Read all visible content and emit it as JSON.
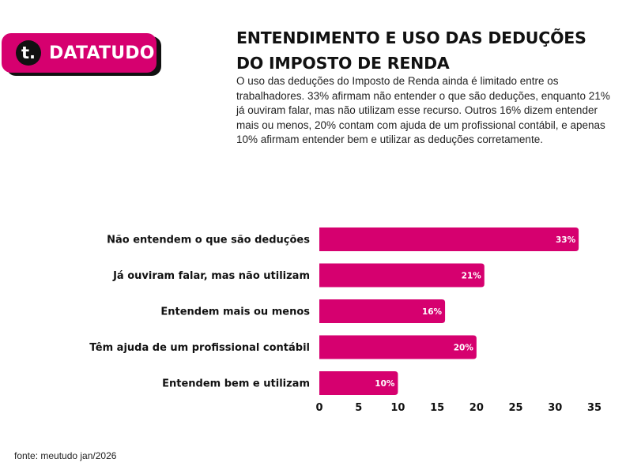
{
  "brand": {
    "logo_letter": "t.",
    "name": "DATATUDO",
    "color": "#d6006f"
  },
  "header": {
    "title_line1": "ENTENDIMENTO E USO DAS DEDUÇÕES",
    "title_line2": "DO IMPOSTO DE RENDA",
    "description": "O uso das deduções do Imposto de Renda ainda é limitado entre os trabalhadores. 33% afirmam não entender o que são deduções, enquanto 21% já ouviram falar, mas não utilizam esse recurso. Outros 16% dizem entender mais ou menos, 20% contam com ajuda de um profissional contábil, e apenas 10% afirmam entender bem e utilizar as deduções corretamente."
  },
  "chart_data": {
    "type": "bar",
    "orientation": "horizontal",
    "categories": [
      "Não entendem o que são deduções",
      "Já ouviram falar, mas não utilizam",
      "Entendem mais ou menos",
      "Têm ajuda de um profissional contábil",
      "Entendem bem e utilizam"
    ],
    "values": [
      33,
      21,
      16,
      20,
      10
    ],
    "data_labels": [
      "33%",
      "21%",
      "16%",
      "20%",
      "10%"
    ],
    "xlim": [
      0,
      35
    ],
    "xticks": [
      0,
      5,
      10,
      15,
      20,
      25,
      30,
      35
    ],
    "bar_color": "#d6006f",
    "grid": false,
    "legend": "none"
  },
  "footer": {
    "source": "fonte: meutudo jan/2026"
  }
}
